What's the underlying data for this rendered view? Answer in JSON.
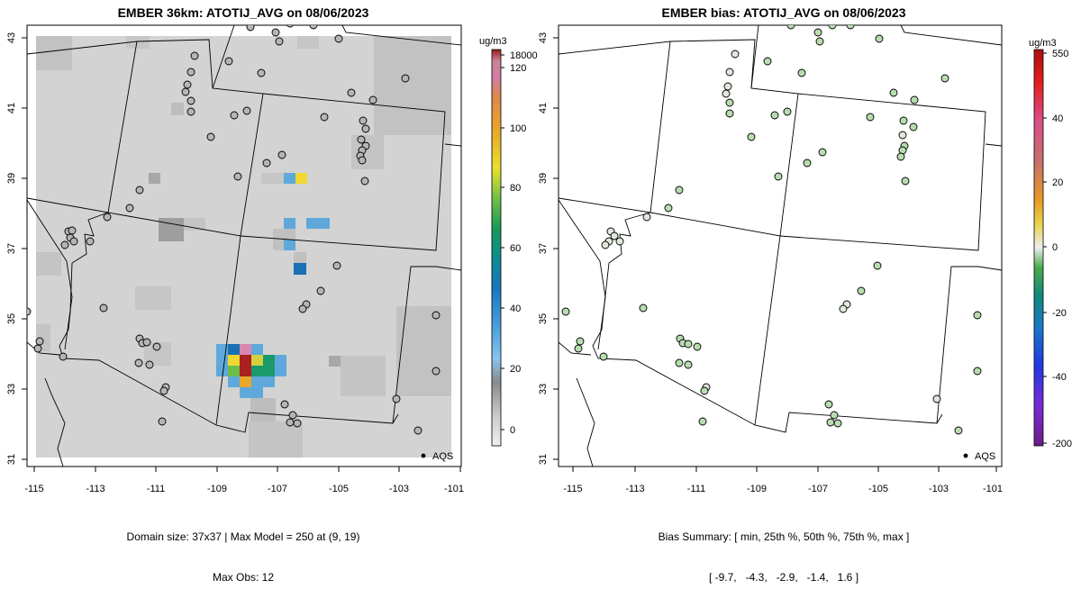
{
  "left_panel": {
    "title": "EMBER 36km: ATOTIJ_AVG on 08/06/2023",
    "footer_line1": "Domain size: 37x37 | Max Model = 250 at (9, 19)",
    "footer_line2": "Max Obs: 12",
    "legend_label": "AQS",
    "colorbar_unit": "ug/m3",
    "colorbar_ticks": [
      "18000",
      "120",
      "100",
      "80",
      "60",
      "40",
      "20",
      "0"
    ]
  },
  "right_panel": {
    "title": "EMBER bias: ATOTIJ_AVG on 08/06/2023",
    "footer_line1": "Bias Summary: [ min, 25th %, 50th %, 75th %, max ]",
    "footer_line2": "[ -9.7,   -4.3,   -2.9,   -1.4,   1.6 ]",
    "legend_label": "AQS",
    "colorbar_unit": "ug/m3",
    "colorbar_ticks": [
      "550",
      "40",
      "20",
      "0",
      "-20",
      "-40",
      "-200"
    ]
  },
  "axes": {
    "lon_ticks": [
      "-115",
      "-113",
      "-111",
      "-109",
      "-107",
      "-105",
      "-103",
      "-101"
    ],
    "lat_ticks": [
      "31",
      "33",
      "35",
      "37",
      "39",
      "41",
      "43"
    ]
  },
  "colors": {
    "grid_base": "#d3d3d3",
    "obs_left": "#b5b5b5",
    "obs_right": "#b8dcb0"
  }
}
